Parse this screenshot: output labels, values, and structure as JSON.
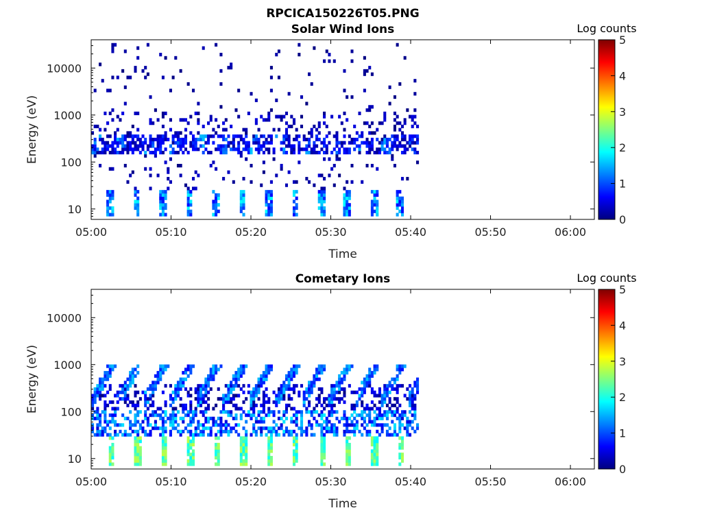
{
  "figure_title": "RPCICA150226T05.PNG",
  "chart_data": [
    {
      "type": "heatmap",
      "title": "Solar Wind Ions",
      "xlabel": "Time",
      "ylabel": "Energy (eV)",
      "x_ticks": [
        "05:00",
        "05:10",
        "05:20",
        "05:30",
        "05:40",
        "05:50",
        "06:00"
      ],
      "y_ticks": [
        "10",
        "100",
        "1000",
        "10000"
      ],
      "y_scale": "log",
      "x_range": [
        "05:00",
        "06:03"
      ],
      "y_range": [
        6,
        40000
      ],
      "colorbar": {
        "label": "Log counts",
        "ticks": [
          "0",
          "1",
          "2",
          "3",
          "4",
          "5"
        ],
        "range": [
          0,
          5
        ],
        "colormap": "jet"
      },
      "data_extent": {
        "x_start": "05:00",
        "x_end": "05:41"
      },
      "pattern": "Repeating energy sweeps roughly every 3 minutes. Highest counts (log 1-2) at 8-25 eV and around 150-400 eV, with sparse single counts up to 30000 eV.",
      "bands": [
        {
          "energy_range_eV": [
            7,
            25
          ],
          "log_counts": 1.6,
          "note": "vertical streaks once per sweep"
        },
        {
          "energy_range_eV": [
            150,
            400
          ],
          "log_counts": 1.2,
          "note": "dense band"
        },
        {
          "energy_range_eV": [
            400,
            30000
          ],
          "log_counts": 0.1,
          "note": "scattered single counts"
        }
      ]
    },
    {
      "type": "heatmap",
      "title": "Cometary Ions",
      "xlabel": "Time",
      "ylabel": "Energy (eV)",
      "x_ticks": [
        "05:00",
        "05:10",
        "05:20",
        "05:30",
        "05:40",
        "05:50",
        "06:00"
      ],
      "y_ticks": [
        "10",
        "100",
        "1000",
        "10000"
      ],
      "y_scale": "log",
      "x_range": [
        "05:00",
        "06:03"
      ],
      "y_range": [
        6,
        40000
      ],
      "colorbar": {
        "label": "Log counts",
        "ticks": [
          "0",
          "1",
          "2",
          "3",
          "4",
          "5"
        ],
        "range": [
          0,
          5
        ],
        "colormap": "jet"
      },
      "data_extent": {
        "x_start": "05:00",
        "x_end": "05:41"
      },
      "pattern": "Repeating energy sweeps roughly every 3 minutes. Highest counts (log 2.5-2.8) at 8-30 eV, streaks rising from about 150 eV to about 1000 eV in each sweep.",
      "bands": [
        {
          "energy_range_eV": [
            7,
            30
          ],
          "log_counts": 2.6,
          "note": "bright vertical streaks once per sweep"
        },
        {
          "energy_range_eV": [
            30,
            100
          ],
          "log_counts": 1.5,
          "note": "medium counts"
        },
        {
          "energy_range_eV": [
            100,
            1000
          ],
          "log_counts": 0.8,
          "note": "rising diagonal streaks"
        }
      ]
    }
  ]
}
